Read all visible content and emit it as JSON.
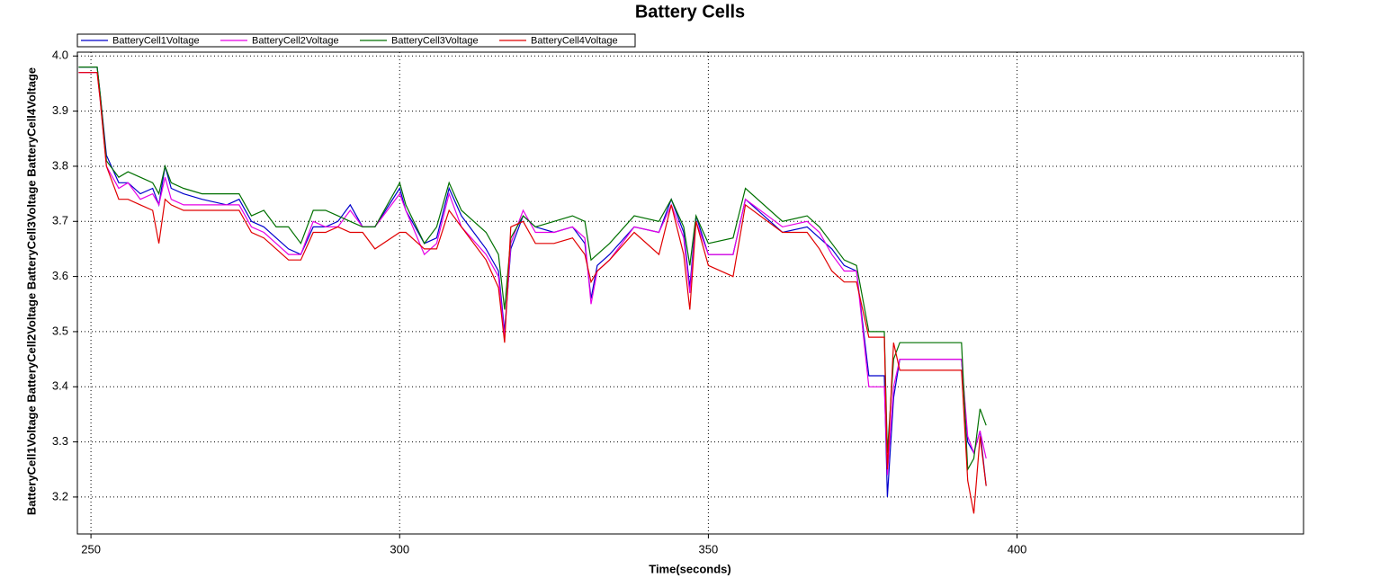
{
  "chart_data": {
    "type": "line",
    "title": "Battery Cells",
    "x_label": "Time(seconds)",
    "y_label": "BatteryCell1Voltage BatteryCell2Voltage BatteryCell3Voltage BatteryCell4Voltage",
    "x": [
      248,
      251,
      251.5,
      252.5,
      254.5,
      256,
      258,
      260,
      261,
      262,
      263,
      265,
      268,
      272,
      274,
      276,
      278,
      280,
      282,
      284,
      286,
      288,
      290,
      292,
      294,
      296,
      300,
      301,
      304,
      306,
      308,
      310,
      314,
      316,
      317,
      318,
      320,
      322,
      325,
      328,
      330,
      331,
      332,
      334,
      338,
      342,
      344,
      346,
      347,
      348,
      350,
      354,
      356,
      362,
      366,
      368,
      370,
      372,
      374,
      376,
      378.5,
      379,
      380,
      381,
      391,
      392,
      393,
      394,
      395
    ],
    "series": [
      {
        "name": "BatteryCell1Voltage",
        "color": "#0000cc",
        "values": [
          3.98,
          3.98,
          3.93,
          3.82,
          3.77,
          3.77,
          3.75,
          3.76,
          3.73,
          3.8,
          3.76,
          3.75,
          3.74,
          3.73,
          3.74,
          3.7,
          3.69,
          3.67,
          3.65,
          3.64,
          3.69,
          3.69,
          3.7,
          3.73,
          3.69,
          3.69,
          3.76,
          3.72,
          3.66,
          3.67,
          3.76,
          3.71,
          3.65,
          3.61,
          3.5,
          3.65,
          3.71,
          3.69,
          3.68,
          3.69,
          3.66,
          3.56,
          3.62,
          3.64,
          3.69,
          3.68,
          3.74,
          3.68,
          3.58,
          3.71,
          3.64,
          3.64,
          3.74,
          3.68,
          3.69,
          3.67,
          3.65,
          3.62,
          3.61,
          3.42,
          3.42,
          3.2,
          3.38,
          3.45,
          3.45,
          3.3,
          3.28,
          3.32,
          3.22
        ]
      },
      {
        "name": "BatteryCell2Voltage",
        "color": "#e600e6",
        "values": [
          3.97,
          3.97,
          3.92,
          3.8,
          3.76,
          3.77,
          3.74,
          3.75,
          3.73,
          3.78,
          3.74,
          3.73,
          3.73,
          3.73,
          3.73,
          3.69,
          3.68,
          3.66,
          3.64,
          3.64,
          3.7,
          3.69,
          3.69,
          3.72,
          3.69,
          3.69,
          3.75,
          3.72,
          3.64,
          3.66,
          3.75,
          3.69,
          3.64,
          3.6,
          3.49,
          3.66,
          3.72,
          3.68,
          3.68,
          3.69,
          3.67,
          3.55,
          3.61,
          3.63,
          3.69,
          3.68,
          3.73,
          3.67,
          3.57,
          3.7,
          3.64,
          3.64,
          3.74,
          3.69,
          3.7,
          3.68,
          3.64,
          3.61,
          3.61,
          3.4,
          3.4,
          3.24,
          3.4,
          3.45,
          3.45,
          3.31,
          3.28,
          3.32,
          3.27
        ]
      },
      {
        "name": "BatteryCell3Voltage",
        "color": "#007000",
        "values": [
          3.98,
          3.98,
          3.93,
          3.81,
          3.78,
          3.79,
          3.78,
          3.77,
          3.75,
          3.8,
          3.77,
          3.76,
          3.75,
          3.75,
          3.75,
          3.71,
          3.72,
          3.69,
          3.69,
          3.66,
          3.72,
          3.72,
          3.71,
          3.7,
          3.69,
          3.69,
          3.77,
          3.73,
          3.66,
          3.69,
          3.77,
          3.72,
          3.68,
          3.64,
          3.54,
          3.67,
          3.71,
          3.69,
          3.7,
          3.71,
          3.7,
          3.63,
          3.64,
          3.66,
          3.71,
          3.7,
          3.74,
          3.69,
          3.62,
          3.71,
          3.66,
          3.67,
          3.76,
          3.7,
          3.71,
          3.69,
          3.66,
          3.63,
          3.62,
          3.5,
          3.5,
          3.28,
          3.45,
          3.48,
          3.48,
          3.25,
          3.27,
          3.36,
          3.33
        ]
      },
      {
        "name": "BatteryCell4Voltage",
        "color": "#e00000",
        "values": [
          3.97,
          3.97,
          3.92,
          3.8,
          3.74,
          3.74,
          3.73,
          3.72,
          3.66,
          3.74,
          3.73,
          3.72,
          3.72,
          3.72,
          3.72,
          3.68,
          3.67,
          3.65,
          3.63,
          3.63,
          3.68,
          3.68,
          3.69,
          3.68,
          3.68,
          3.65,
          3.68,
          3.68,
          3.65,
          3.65,
          3.72,
          3.69,
          3.63,
          3.58,
          3.48,
          3.69,
          3.7,
          3.66,
          3.66,
          3.67,
          3.64,
          3.59,
          3.61,
          3.63,
          3.68,
          3.64,
          3.73,
          3.64,
          3.54,
          3.7,
          3.62,
          3.6,
          3.73,
          3.68,
          3.68,
          3.65,
          3.61,
          3.59,
          3.59,
          3.49,
          3.49,
          3.25,
          3.48,
          3.43,
          3.43,
          3.23,
          3.17,
          3.31,
          3.22
        ]
      }
    ],
    "xlim": [
      247.8,
      446.4
    ],
    "ylim": [
      3.133,
      4.007
    ],
    "xticks": [
      250,
      300,
      350,
      400
    ],
    "yticks": [
      {
        "value": 3.2,
        "label": "3.2"
      },
      {
        "value": 3.3,
        "label": "3.3"
      },
      {
        "value": 3.4,
        "label": "3.4"
      },
      {
        "value": 3.5,
        "label": "3.5"
      },
      {
        "value": 3.6,
        "label": "3.6"
      },
      {
        "value": 3.7,
        "label": "3.7"
      },
      {
        "value": 3.8,
        "label": "3.8"
      },
      {
        "value": 3.9,
        "label": "3.9"
      },
      {
        "value": 4.0,
        "label": "4.0"
      }
    ],
    "grid": true,
    "legend": "top-left"
  }
}
